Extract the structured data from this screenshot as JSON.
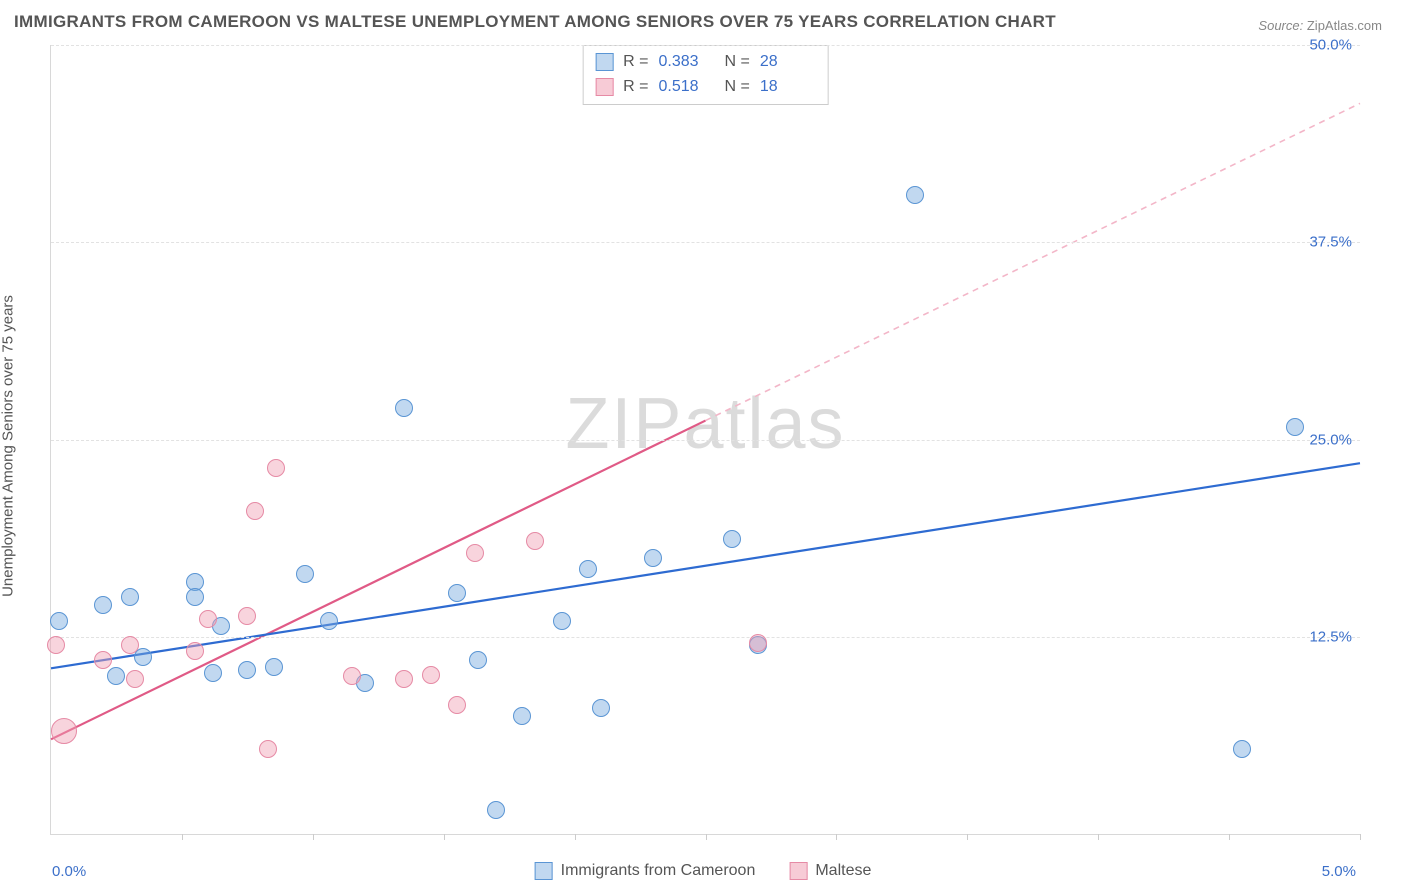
{
  "title": "IMMIGRANTS FROM CAMEROON VS MALTESE UNEMPLOYMENT AMONG SENIORS OVER 75 YEARS CORRELATION CHART",
  "source_label": "Source:",
  "source_value": "ZipAtlas.com",
  "watermark": "ZIPatlas",
  "chart": {
    "type": "scatter",
    "y_axis_title": "Unemployment Among Seniors over 75 years",
    "background_color": "#ffffff",
    "grid_color": "#e2e2e2",
    "axis_color": "#d8d8d8",
    "tick_label_color": "#3b6fc9",
    "xlim": [
      0.0,
      5.0
    ],
    "ylim": [
      0.0,
      50.0
    ],
    "x_origin_label": "0.0%",
    "x_max_label": "5.0%",
    "y_ticks": [
      {
        "v": 12.5,
        "label": "12.5%"
      },
      {
        "v": 25.0,
        "label": "25.0%"
      },
      {
        "v": 37.5,
        "label": "37.5%"
      },
      {
        "v": 50.0,
        "label": "50.0%"
      }
    ],
    "x_tick_positions": [
      0.5,
      1.0,
      1.5,
      2.0,
      2.5,
      3.0,
      3.5,
      4.0,
      4.5,
      5.0
    ],
    "marker_radius": 9,
    "series": [
      {
        "name": "blue",
        "label": "Immigrants from Cameroon",
        "fill": "rgba(117,169,222,0.45)",
        "stroke": "#5a95d4",
        "R": "0.383",
        "N": "28",
        "trend": {
          "x1": 0.0,
          "y1": 10.5,
          "x2": 5.0,
          "y2": 23.5,
          "color": "#2e6bd1",
          "width": 2.2,
          "dash": "none"
        },
        "points": [
          {
            "x": 0.03,
            "y": 13.5
          },
          {
            "x": 0.2,
            "y": 14.5
          },
          {
            "x": 0.25,
            "y": 10.0
          },
          {
            "x": 0.3,
            "y": 15.0
          },
          {
            "x": 0.35,
            "y": 11.2
          },
          {
            "x": 0.55,
            "y": 16.0
          },
          {
            "x": 0.55,
            "y": 15.0
          },
          {
            "x": 0.62,
            "y": 10.2
          },
          {
            "x": 0.65,
            "y": 13.2
          },
          {
            "x": 0.75,
            "y": 10.4
          },
          {
            "x": 0.85,
            "y": 10.6
          },
          {
            "x": 1.06,
            "y": 13.5
          },
          {
            "x": 0.97,
            "y": 16.5
          },
          {
            "x": 1.2,
            "y": 9.6
          },
          {
            "x": 1.35,
            "y": 27.0
          },
          {
            "x": 1.55,
            "y": 15.3
          },
          {
            "x": 1.63,
            "y": 11.0
          },
          {
            "x": 1.7,
            "y": 1.5
          },
          {
            "x": 1.8,
            "y": 7.5
          },
          {
            "x": 1.95,
            "y": 13.5
          },
          {
            "x": 2.05,
            "y": 16.8
          },
          {
            "x": 2.1,
            "y": 8.0
          },
          {
            "x": 2.3,
            "y": 17.5
          },
          {
            "x": 2.6,
            "y": 18.7
          },
          {
            "x": 2.7,
            "y": 12.0
          },
          {
            "x": 3.3,
            "y": 40.5
          },
          {
            "x": 4.55,
            "y": 5.4
          },
          {
            "x": 4.75,
            "y": 25.8
          }
        ]
      },
      {
        "name": "pink",
        "label": "Maltese",
        "fill": "rgba(240,160,180,0.45)",
        "stroke": "#e68aa5",
        "R": "0.518",
        "N": "18",
        "trend_solid": {
          "x1": 0.0,
          "y1": 6.0,
          "x2": 2.5,
          "y2": 26.2,
          "color": "#e05a86",
          "width": 2.2
        },
        "trend_dashed": {
          "x1": 2.5,
          "y1": 26.2,
          "x2": 5.0,
          "y2": 46.3,
          "color": "#f3b6c8",
          "width": 1.6,
          "dash": "6,5"
        },
        "points": [
          {
            "x": 0.02,
            "y": 12.0
          },
          {
            "x": 0.05,
            "y": 6.5,
            "r": 13
          },
          {
            "x": 0.2,
            "y": 11.0
          },
          {
            "x": 0.3,
            "y": 12.0
          },
          {
            "x": 0.32,
            "y": 9.8
          },
          {
            "x": 0.55,
            "y": 11.6
          },
          {
            "x": 0.6,
            "y": 13.6
          },
          {
            "x": 0.75,
            "y": 13.8
          },
          {
            "x": 0.78,
            "y": 20.5
          },
          {
            "x": 0.83,
            "y": 5.4
          },
          {
            "x": 0.86,
            "y": 23.2
          },
          {
            "x": 1.15,
            "y": 10.0
          },
          {
            "x": 1.35,
            "y": 9.8
          },
          {
            "x": 1.45,
            "y": 10.1
          },
          {
            "x": 1.55,
            "y": 8.2
          },
          {
            "x": 1.62,
            "y": 17.8
          },
          {
            "x": 1.85,
            "y": 18.6
          },
          {
            "x": 2.7,
            "y": 12.1
          }
        ]
      }
    ],
    "legend": {
      "stats_labels": {
        "R": "R =",
        "N": "N ="
      }
    }
  }
}
